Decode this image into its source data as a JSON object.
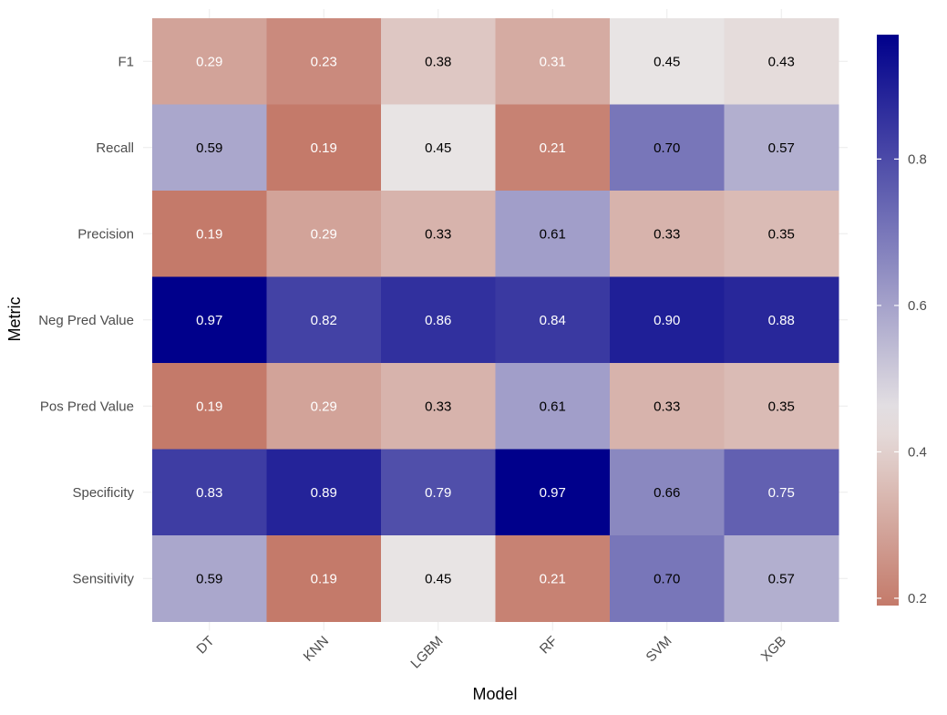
{
  "chart_data": {
    "type": "heatmap",
    "title": "",
    "xlabel": "Model",
    "ylabel": "Metric",
    "x_categories": [
      "DT",
      "KNN",
      "LGBM",
      "RF",
      "SVM",
      "XGB"
    ],
    "y_categories": [
      "F1",
      "Recall",
      "Precision",
      "Neg Pred Value",
      "Pos Pred Value",
      "Specificity",
      "Sensitivity"
    ],
    "values": [
      [
        0.29,
        0.23,
        0.38,
        0.31,
        0.45,
        0.43
      ],
      [
        0.59,
        0.19,
        0.45,
        0.21,
        0.7,
        0.57
      ],
      [
        0.19,
        0.29,
        0.33,
        0.61,
        0.33,
        0.35
      ],
      [
        0.97,
        0.82,
        0.86,
        0.84,
        0.9,
        0.88
      ],
      [
        0.19,
        0.29,
        0.33,
        0.61,
        0.33,
        0.35
      ],
      [
        0.83,
        0.89,
        0.79,
        0.97,
        0.66,
        0.75
      ],
      [
        0.59,
        0.19,
        0.45,
        0.21,
        0.7,
        0.57
      ]
    ],
    "color_scale": {
      "low": "#c47a6a",
      "mid": "#e8e4e4",
      "high": "#00008b",
      "min": 0.19,
      "midpoint": 0.45,
      "max": 0.97
    },
    "legend": {
      "placement": "right",
      "ticks": [
        0.2,
        0.4,
        0.6,
        0.8
      ],
      "tick_labels": [
        "0.2",
        "0.4",
        "0.6",
        "0.8"
      ]
    },
    "grid": true,
    "x_tick_rotation": -45
  }
}
